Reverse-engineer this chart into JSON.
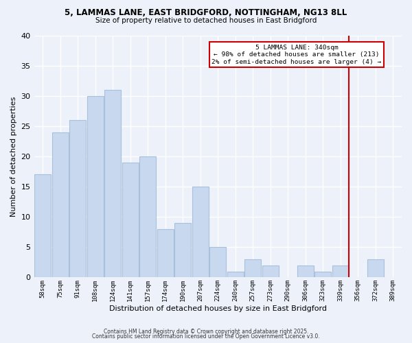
{
  "title1": "5, LAMMAS LANE, EAST BRIDGFORD, NOTTINGHAM, NG13 8LL",
  "title2": "Size of property relative to detached houses in East Bridgford",
  "xlabel": "Distribution of detached houses by size in East Bridgford",
  "ylabel": "Number of detached properties",
  "categories": [
    "58sqm",
    "75sqm",
    "91sqm",
    "108sqm",
    "124sqm",
    "141sqm",
    "157sqm",
    "174sqm",
    "190sqm",
    "207sqm",
    "224sqm",
    "240sqm",
    "257sqm",
    "273sqm",
    "290sqm",
    "306sqm",
    "323sqm",
    "339sqm",
    "356sqm",
    "372sqm",
    "389sqm"
  ],
  "values": [
    17,
    24,
    26,
    30,
    31,
    19,
    20,
    8,
    9,
    15,
    5,
    1,
    3,
    2,
    0,
    2,
    1,
    2,
    0,
    3,
    0
  ],
  "bar_color": "#c8d9ef",
  "bar_edge_color": "#a8c0dc",
  "background_color": "#edf2fa",
  "grid_color": "#ffffff",
  "red_line_index": 17,
  "annotation_title": "5 LAMMAS LANE: 340sqm",
  "annotation_line1": "← 98% of detached houses are smaller (213)",
  "annotation_line2": "2% of semi-detached houses are larger (4) →",
  "annotation_box_color": "#ffffff",
  "annotation_border_color": "#cc0000",
  "red_line_color": "#cc0000",
  "footer1": "Contains HM Land Registry data © Crown copyright and database right 2025.",
  "footer2": "Contains public sector information licensed under the Open Government Licence v3.0.",
  "ylim": [
    0,
    40
  ],
  "yticks": [
    0,
    5,
    10,
    15,
    20,
    25,
    30,
    35,
    40
  ]
}
